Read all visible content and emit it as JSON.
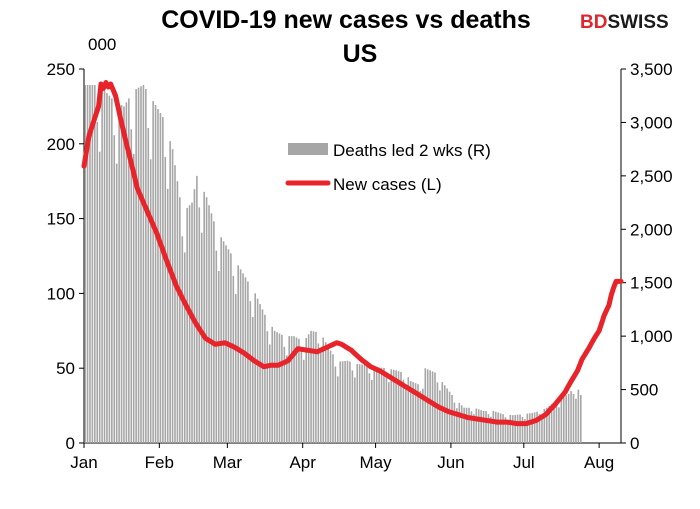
{
  "chart_data": {
    "type": "bar+line",
    "title_line1": "COVID-19  new cases  vs deaths",
    "title_line2": "US",
    "left_unit": "000",
    "brand": {
      "bd": "BD",
      "swiss": "SWISS",
      "bd_color": "#e0262b",
      "swiss_color": "#1a1a1a"
    },
    "y_left": {
      "min": 0,
      "max": 250,
      "ticks": [
        0,
        50,
        100,
        150,
        200,
        250
      ]
    },
    "y_right": {
      "min": 0,
      "max": 3500,
      "ticks": [
        0,
        500,
        1000,
        1500,
        2000,
        2500,
        3000,
        3500
      ]
    },
    "x_range_days": [
      0,
      221
    ],
    "x_ticks": [
      {
        "day": 0,
        "label": "Jan"
      },
      {
        "day": 31,
        "label": "Feb"
      },
      {
        "day": 59,
        "label": "Mar"
      },
      {
        "day": 90,
        "label": "Apr"
      },
      {
        "day": 120,
        "label": "May"
      },
      {
        "day": 151,
        "label": "Jun"
      },
      {
        "day": 181,
        "label": "Jul"
      },
      {
        "day": 212,
        "label": "Aug"
      }
    ],
    "legend": [
      {
        "name": "Deaths led 2 wks (R)",
        "kind": "bar",
        "color": "#a6a6a6"
      },
      {
        "name": "New cases (L)",
        "kind": "line",
        "color": "#e8232a"
      }
    ],
    "series": [
      {
        "name": "Deaths led 2 wks (R)",
        "axis": "right",
        "type": "bar",
        "color": "#a6a6a6",
        "points": [
          [
            0,
            3350
          ],
          [
            4,
            3350
          ],
          [
            8,
            3300
          ],
          [
            12,
            3200
          ],
          [
            16,
            3150
          ],
          [
            20,
            3300
          ],
          [
            24,
            3350
          ],
          [
            28,
            3200
          ],
          [
            32,
            3050
          ],
          [
            36,
            2750
          ],
          [
            40,
            2150
          ],
          [
            44,
            2250
          ],
          [
            46,
            2500
          ],
          [
            50,
            2300
          ],
          [
            54,
            2000
          ],
          [
            58,
            1850
          ],
          [
            62,
            1700
          ],
          [
            66,
            1550
          ],
          [
            70,
            1400
          ],
          [
            74,
            1200
          ],
          [
            78,
            1050
          ],
          [
            82,
            1000
          ],
          [
            86,
            1000
          ],
          [
            90,
            950
          ],
          [
            93,
            1050
          ],
          [
            97,
            1030
          ],
          [
            100,
            900
          ],
          [
            104,
            760
          ],
          [
            108,
            770
          ],
          [
            112,
            740
          ],
          [
            116,
            730
          ],
          [
            120,
            710
          ],
          [
            124,
            700
          ],
          [
            128,
            680
          ],
          [
            132,
            650
          ],
          [
            134,
            580
          ],
          [
            138,
            540
          ],
          [
            140,
            700
          ],
          [
            144,
            660
          ],
          [
            148,
            540
          ],
          [
            152,
            420
          ],
          [
            156,
            330
          ],
          [
            160,
            330
          ],
          [
            164,
            300
          ],
          [
            168,
            300
          ],
          [
            172,
            270
          ],
          [
            176,
            260
          ],
          [
            180,
            270
          ],
          [
            184,
            280
          ],
          [
            187,
            300
          ],
          [
            190,
            330
          ],
          [
            193,
            380
          ],
          [
            196,
            420
          ],
          [
            199,
            460
          ],
          [
            201,
            510
          ],
          [
            203,
            500
          ],
          [
            204,
            450
          ]
        ]
      },
      {
        "name": "New cases (L)",
        "axis": "left",
        "type": "line",
        "color": "#e8232a",
        "points": [
          [
            0,
            185
          ],
          [
            2,
            205
          ],
          [
            4,
            215
          ],
          [
            6,
            225
          ],
          [
            7,
            240
          ],
          [
            8,
            237
          ],
          [
            9,
            241
          ],
          [
            10,
            238
          ],
          [
            11,
            240
          ],
          [
            13,
            232
          ],
          [
            16,
            210
          ],
          [
            19,
            190
          ],
          [
            22,
            170
          ],
          [
            26,
            155
          ],
          [
            30,
            140
          ],
          [
            34,
            122
          ],
          [
            38,
            105
          ],
          [
            42,
            92
          ],
          [
            46,
            80
          ],
          [
            50,
            70
          ],
          [
            54,
            66
          ],
          [
            58,
            67
          ],
          [
            62,
            64
          ],
          [
            66,
            60
          ],
          [
            70,
            55
          ],
          [
            74,
            51
          ],
          [
            77,
            52
          ],
          [
            80,
            52
          ],
          [
            84,
            55
          ],
          [
            88,
            63
          ],
          [
            92,
            62
          ],
          [
            96,
            61
          ],
          [
            100,
            64
          ],
          [
            104,
            67
          ],
          [
            106,
            66
          ],
          [
            110,
            62
          ],
          [
            114,
            56
          ],
          [
            118,
            51
          ],
          [
            122,
            48
          ],
          [
            126,
            44
          ],
          [
            130,
            40
          ],
          [
            134,
            36
          ],
          [
            138,
            32
          ],
          [
            142,
            28
          ],
          [
            146,
            24
          ],
          [
            150,
            21
          ],
          [
            154,
            19
          ],
          [
            158,
            17
          ],
          [
            162,
            16
          ],
          [
            166,
            15
          ],
          [
            170,
            14
          ],
          [
            174,
            14
          ],
          [
            178,
            13
          ],
          [
            182,
            13
          ],
          [
            186,
            15
          ],
          [
            190,
            19
          ],
          [
            194,
            26
          ],
          [
            198,
            34
          ],
          [
            200,
            40
          ],
          [
            203,
            48
          ],
          [
            205,
            56
          ],
          [
            208,
            64
          ],
          [
            210,
            70
          ],
          [
            212,
            75
          ],
          [
            214,
            85
          ],
          [
            216,
            92
          ],
          [
            217,
            99
          ],
          [
            218,
            104
          ],
          [
            219,
            108
          ],
          [
            220,
            108
          ],
          [
            221,
            108
          ]
        ]
      }
    ]
  }
}
